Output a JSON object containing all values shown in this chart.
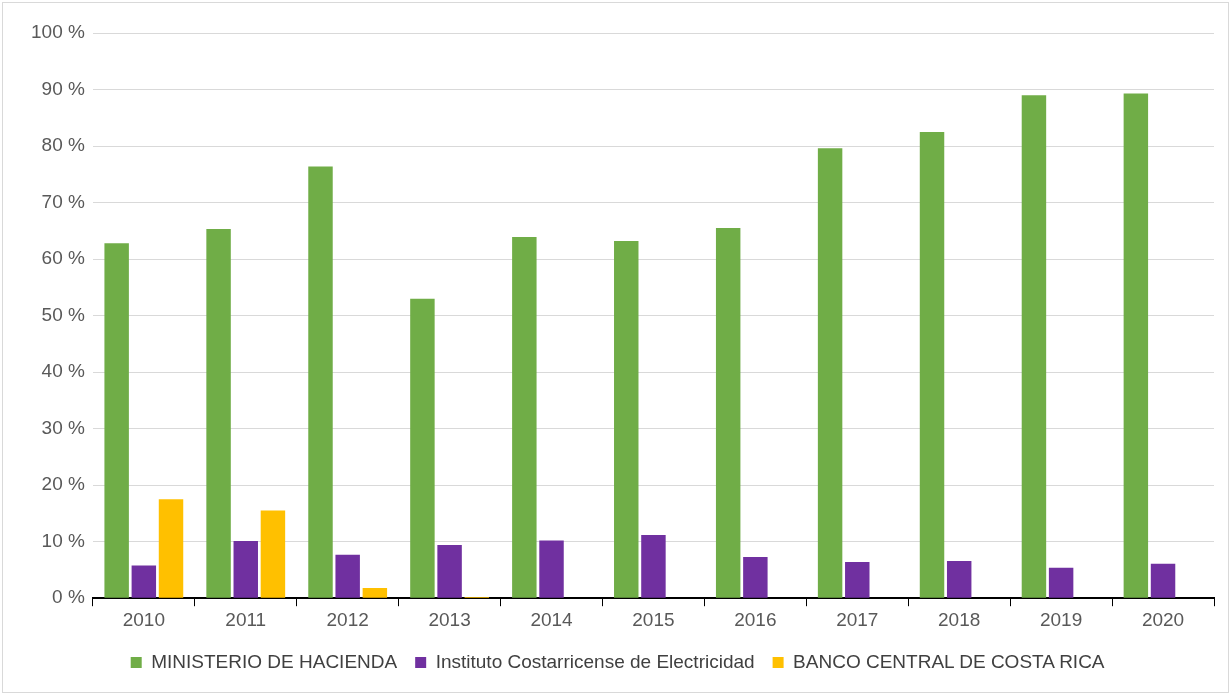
{
  "chart_data": {
    "type": "bar",
    "categories": [
      "2010",
      "2011",
      "2012",
      "2013",
      "2014",
      "2015",
      "2016",
      "2017",
      "2018",
      "2019",
      "2020"
    ],
    "series": [
      {
        "name": "MINISTERIO DE HACIENDA",
        "color": "#70ad47",
        "values": [
          62.8,
          65.3,
          76.4,
          53,
          63.9,
          63.2,
          65.5,
          79.6,
          82.5,
          89,
          89.3
        ]
      },
      {
        "name": "Instituto Costarricense de Electricidad",
        "color": "#7030a0",
        "values": [
          5.8,
          10.1,
          7.7,
          9.4,
          10.2,
          11.2,
          7.3,
          6.4,
          6.6,
          5.4,
          6.1
        ]
      },
      {
        "name": "BANCO CENTRAL DE COSTA RICA",
        "color": "#ffc000",
        "values": [
          17.5,
          15.5,
          1.8,
          0.2,
          0,
          0,
          0,
          0,
          0,
          0,
          0
        ]
      }
    ],
    "ylim": [
      0,
      100
    ],
    "yticks": [
      {
        "value": 0,
        "label": "0 %"
      },
      {
        "value": 10,
        "label": "10 %"
      },
      {
        "value": 20,
        "label": "20 %"
      },
      {
        "value": 30,
        "label": "30 %"
      },
      {
        "value": 40,
        "label": "40 %"
      },
      {
        "value": 50,
        "label": "50 %"
      },
      {
        "value": 60,
        "label": "60 %"
      },
      {
        "value": 70,
        "label": "70 %"
      },
      {
        "value": 80,
        "label": "80 %"
      },
      {
        "value": 90,
        "label": "90 %"
      },
      {
        "value": 100,
        "label": "100 %"
      }
    ],
    "grid": "y",
    "legend": "bottom"
  }
}
